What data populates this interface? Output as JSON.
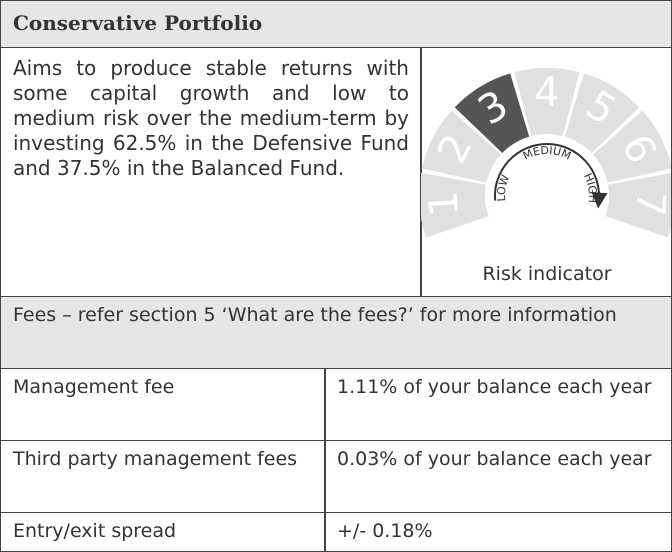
{
  "header": {
    "title": "Conservative Portfolio"
  },
  "description": "Aims to produce stable returns with some capital growth and low to medium risk over the medium-term by investing 62.5% in the Defensive Fund and 37.5% in the Balanced Fund.",
  "risk_indicator": {
    "levels": [
      "1",
      "2",
      "3",
      "4",
      "5",
      "6",
      "7"
    ],
    "selected_level": 3,
    "labels": {
      "low": "LOW",
      "medium": "MEDIUM",
      "high": "HIGH"
    },
    "caption": "Risk indicator"
  },
  "fees": {
    "heading": "Fees – refer section 5 ‘What are the fees?’ for more information",
    "rows": [
      [
        "Management fee",
        "1.11% of your balance each year"
      ],
      [
        "Third party management fees",
        "0.03% of your balance each year"
      ],
      [
        "Entry/exit spread",
        "+/- 0.18%"
      ]
    ]
  }
}
